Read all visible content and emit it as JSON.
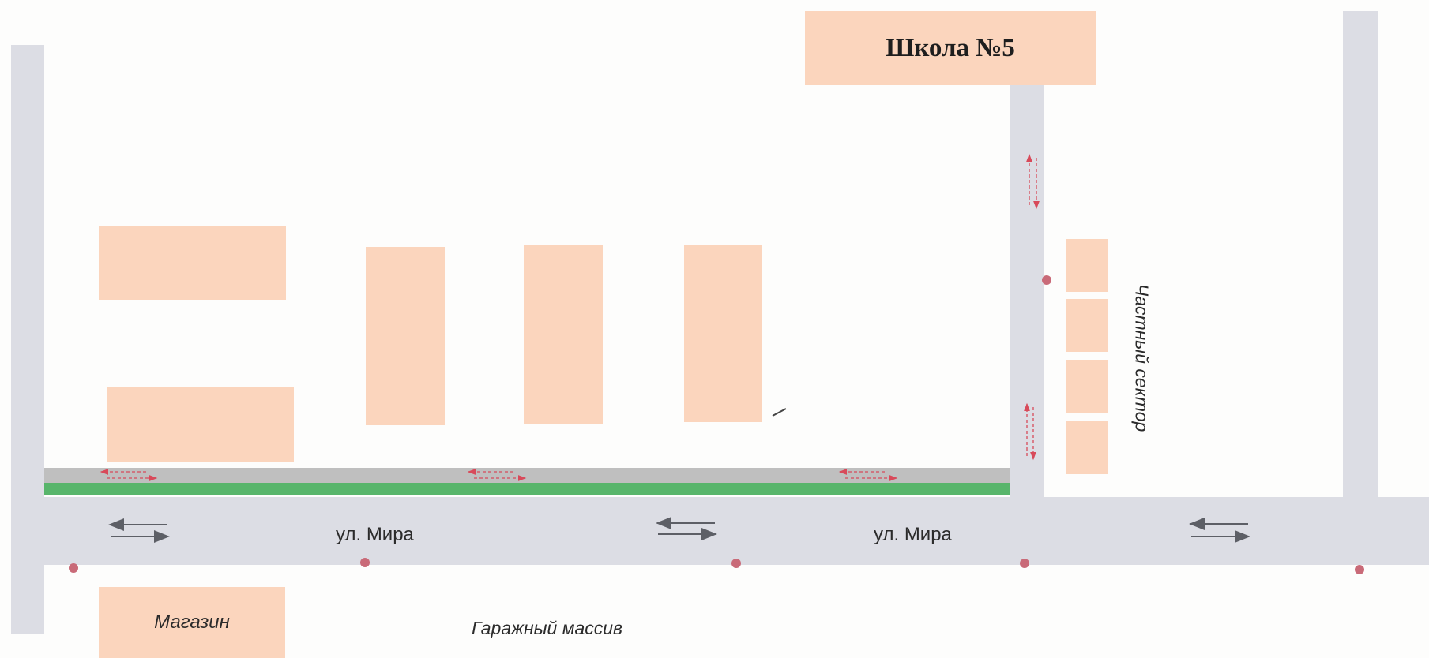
{
  "buildings": {
    "school": "Школа №5",
    "shop": "Магазин"
  },
  "areas": {
    "private_sector": "Частный сектор",
    "garages": "Гаражный массив"
  },
  "streets": {
    "mira_west": "ул. Мира",
    "mira_east": "ул. Мира"
  },
  "colors": {
    "road": "#dcdde4",
    "building": "#fbd5bd",
    "sidewalk": "#bfbfbf",
    "green_strip": "#58b56b",
    "pedestrian_route": "#d84a5a",
    "traffic_arrows": "#5d5f66",
    "crossing_dot": "#c96a78"
  }
}
